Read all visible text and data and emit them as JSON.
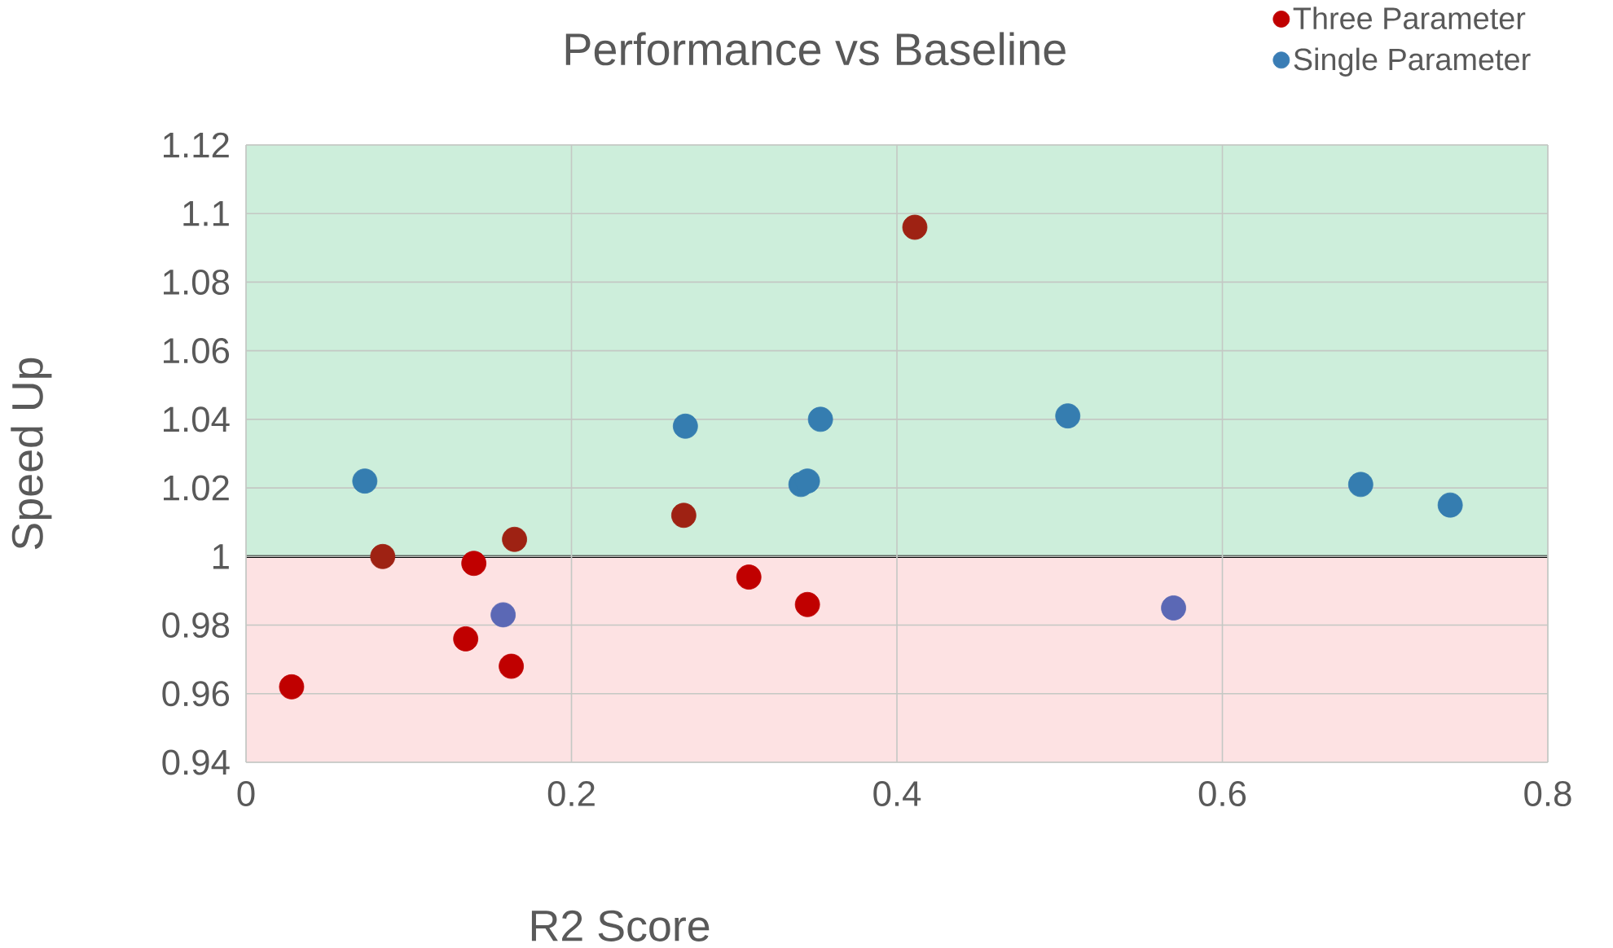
{
  "chart_data": {
    "type": "scatter",
    "title": "Performance vs Baseline",
    "xlabel": "R2 Score",
    "ylabel": "Speed Up",
    "xlim": [
      0,
      0.8
    ],
    "xticks": [
      0,
      0.2,
      0.4,
      0.6,
      0.8
    ],
    "ylim": [
      0.94,
      1.12
    ],
    "yticks": [
      0.94,
      0.96,
      0.98,
      1,
      1.02,
      1.04,
      1.06,
      1.08,
      1.1,
      1.12
    ],
    "grid": true,
    "legend": "top right",
    "marker": "circle",
    "bands": [
      {
        "axis": "y",
        "from": 1,
        "to": 1.12,
        "color": "#cdeedb"
      },
      {
        "axis": "y",
        "from": 0.94,
        "to": 1,
        "color": "#fde2e3"
      }
    ],
    "ref_lines": [
      {
        "axis": "y",
        "value": 1,
        "color": "#000000"
      }
    ],
    "series": [
      {
        "name": "Three Parameter",
        "color": "#c00000",
        "x": [
          0.028,
          0.084,
          0.135,
          0.14,
          0.163,
          0.165,
          0.269,
          0.309,
          0.345,
          0.411
        ],
        "values": [
          0.962,
          1.0,
          0.976,
          0.998,
          0.968,
          1.005,
          1.012,
          0.994,
          0.986,
          1.096
        ],
        "colors": [
          "#c00000",
          "#9e2213",
          "#c00000",
          "#c00000",
          "#c00000",
          "#9e2213",
          "#9e2213",
          "#c00000",
          "#c00000",
          "#9e2213"
        ]
      },
      {
        "name": "Single Parameter",
        "color": "#3a7db5",
        "x": [
          0.073,
          0.158,
          0.27,
          0.341,
          0.345,
          0.353,
          0.505,
          0.57,
          0.685,
          0.74
        ],
        "values": [
          1.022,
          0.983,
          1.038,
          1.021,
          1.022,
          1.04,
          1.041,
          0.985,
          1.021,
          1.015
        ],
        "colors": [
          "#357db0",
          "#5b68b5",
          "#357db0",
          "#357db0",
          "#357db0",
          "#357db0",
          "#357db0",
          "#5b68b5",
          "#357db0",
          "#357db0"
        ]
      }
    ]
  }
}
